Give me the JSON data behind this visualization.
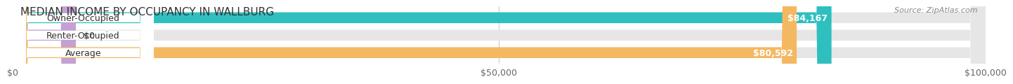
{
  "title": "MEDIAN INCOME BY OCCUPANCY IN WALLBURG",
  "source": "Source: ZipAtlas.com",
  "categories": [
    "Owner-Occupied",
    "Renter-Occupied",
    "Average"
  ],
  "values": [
    84167,
    0,
    80592
  ],
  "bar_colors": [
    "#2fbfbf",
    "#c4a0d4",
    "#f5b862"
  ],
  "bar_labels": [
    "$84,167",
    "$0",
    "$80,592"
  ],
  "xlim": [
    0,
    100000
  ],
  "xticks": [
    0,
    50000,
    100000
  ],
  "xtick_labels": [
    "$0",
    "$50,000",
    "$100,000"
  ],
  "page_bg_color": "#ffffff",
  "bar_bg_color": "#e6e6e6",
  "label_bg_color": "#ffffff",
  "title_fontsize": 11,
  "source_fontsize": 8,
  "label_fontsize": 9,
  "value_fontsize": 9,
  "bar_height": 0.62,
  "renter_small_bar": 6500
}
